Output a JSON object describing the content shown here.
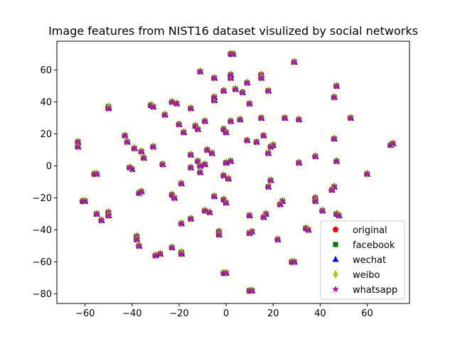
{
  "chart_data": {
    "type": "scatter",
    "title": "Image features from NIST16 dataset visulized by social networks",
    "xlabel": "",
    "ylabel": "",
    "xlim": [
      -72,
      78
    ],
    "ylim": [
      -86,
      78
    ],
    "xticks": [
      -60,
      -40,
      -20,
      0,
      20,
      40,
      60
    ],
    "yticks": [
      -80,
      -60,
      -40,
      -20,
      0,
      20,
      40,
      60
    ],
    "xtick_labels": [
      "−60",
      "−40",
      "−20",
      "0",
      "20",
      "40",
      "60"
    ],
    "ytick_labels": [
      "−80",
      "−60",
      "−40",
      "−20",
      "0",
      "20",
      "40",
      "60"
    ],
    "grid": false,
    "legend_position": "lower-right",
    "series": [
      {
        "name": "original",
        "marker": "circle",
        "color": "#ff0000"
      },
      {
        "name": "facebook",
        "marker": "square",
        "color": "#008000"
      },
      {
        "name": "wechat",
        "marker": "triangle",
        "color": "#0000ff"
      },
      {
        "name": "weibo",
        "marker": "thin_diamond",
        "color": "#bfbf00"
      },
      {
        "name": "whatsapp",
        "marker": "star",
        "color": "#bf00bf"
      }
    ],
    "points": [
      [
        2,
        70
      ],
      [
        3,
        70
      ],
      [
        -11,
        59
      ],
      [
        29,
        65
      ],
      [
        -5,
        55
      ],
      [
        2,
        55
      ],
      [
        2,
        57
      ],
      [
        15,
        57
      ],
      [
        15,
        55
      ],
      [
        9,
        52
      ],
      [
        47,
        50
      ],
      [
        -1,
        47
      ],
      [
        4,
        48
      ],
      [
        7,
        46
      ],
      [
        18,
        47
      ],
      [
        46,
        43
      ],
      [
        -5,
        41
      ],
      [
        -5,
        43
      ],
      [
        -32,
        38
      ],
      [
        -31,
        37
      ],
      [
        -50,
        37
      ],
      [
        -50,
        36
      ],
      [
        -23,
        40
      ],
      [
        -21,
        39
      ],
      [
        10,
        39
      ],
      [
        -15,
        36
      ],
      [
        -26,
        32
      ],
      [
        53,
        30
      ],
      [
        -9,
        28
      ],
      [
        -1,
        23
      ],
      [
        0,
        21
      ],
      [
        2,
        28
      ],
      [
        6,
        29
      ],
      [
        15,
        30
      ],
      [
        25,
        30
      ],
      [
        31,
        29
      ],
      [
        -20,
        26
      ],
      [
        -13,
        25
      ],
      [
        -12,
        23
      ],
      [
        -18,
        21
      ],
      [
        16,
        19
      ],
      [
        9,
        16
      ],
      [
        13,
        15
      ],
      [
        20,
        13
      ],
      [
        19,
        12
      ],
      [
        46,
        17
      ],
      [
        -63,
        15
      ],
      [
        -63,
        12
      ],
      [
        -43,
        19
      ],
      [
        -42,
        15
      ],
      [
        -39,
        11
      ],
      [
        -36,
        9
      ],
      [
        -35,
        5
      ],
      [
        -31,
        12
      ],
      [
        -27,
        1
      ],
      [
        -40,
        -2
      ],
      [
        -41,
        -1
      ],
      [
        -15,
        7
      ],
      [
        -15,
        -1
      ],
      [
        -12,
        3
      ],
      [
        -11,
        0
      ],
      [
        -11,
        -4
      ],
      [
        -9,
        1
      ],
      [
        -8,
        10
      ],
      [
        -6,
        8
      ],
      [
        0,
        2
      ],
      [
        2,
        3
      ],
      [
        -1,
        -6
      ],
      [
        1,
        -8
      ],
      [
        18,
        8
      ],
      [
        31,
        2
      ],
      [
        38,
        6
      ],
      [
        47,
        3
      ],
      [
        -56,
        -5
      ],
      [
        -55,
        -5
      ],
      [
        -19,
        -11
      ],
      [
        -37,
        -17
      ],
      [
        -36,
        -16
      ],
      [
        -23,
        -18
      ],
      [
        -22,
        -20
      ],
      [
        -5,
        -19
      ],
      [
        -1,
        -21
      ],
      [
        0,
        -23
      ],
      [
        19,
        -9
      ],
      [
        18,
        -13
      ],
      [
        46,
        -13
      ],
      [
        45,
        -15
      ],
      [
        60,
        -5
      ],
      [
        -61,
        -22
      ],
      [
        -60,
        -22
      ],
      [
        -55,
        -30
      ],
      [
        -53,
        -34
      ],
      [
        -50,
        -29
      ],
      [
        -50,
        -31
      ],
      [
        -19,
        -36
      ],
      [
        -9,
        -28
      ],
      [
        -7,
        -29
      ],
      [
        -15,
        -33
      ],
      [
        -3,
        -41
      ],
      [
        -3,
        -43
      ],
      [
        10,
        -31
      ],
      [
        17,
        -30
      ],
      [
        16,
        -32
      ],
      [
        24,
        -22
      ],
      [
        23,
        -24
      ],
      [
        38,
        -20
      ],
      [
        38,
        -22
      ],
      [
        41,
        -28
      ],
      [
        47,
        -30
      ],
      [
        48,
        -31
      ],
      [
        11,
        -41
      ],
      [
        10,
        -42
      ],
      [
        22,
        -46
      ],
      [
        34,
        -39
      ],
      [
        35,
        -40
      ],
      [
        -38,
        -44
      ],
      [
        -38,
        -46
      ],
      [
        -37,
        -50
      ],
      [
        -30,
        -56
      ],
      [
        -28,
        -55
      ],
      [
        -23,
        -51
      ],
      [
        -19,
        -54
      ],
      [
        -19,
        -55
      ],
      [
        28,
        -60
      ],
      [
        29,
        -60
      ],
      [
        -1,
        -67
      ],
      [
        0,
        -67
      ],
      [
        10,
        -78
      ],
      [
        11,
        -78
      ],
      [
        70,
        13
      ],
      [
        71,
        14
      ]
    ]
  }
}
